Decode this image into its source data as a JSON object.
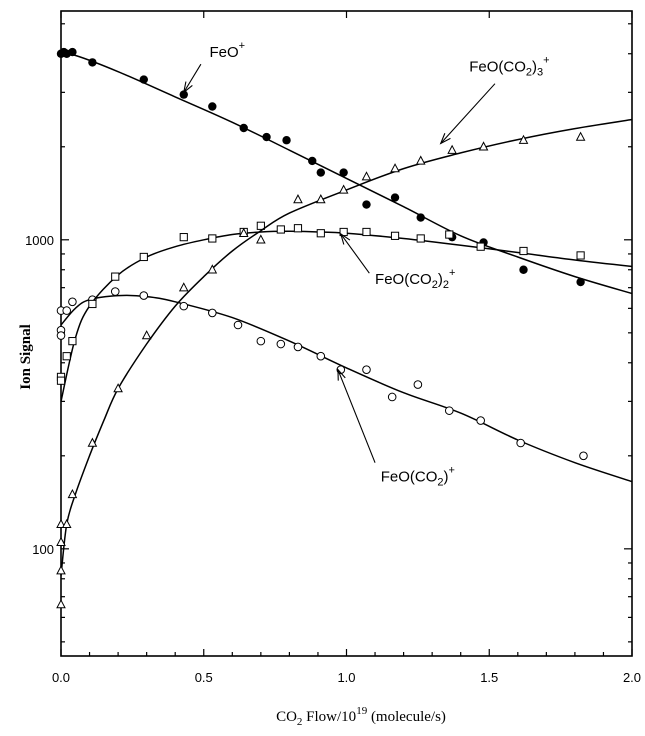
{
  "chart_data": {
    "type": "scatter",
    "title": "",
    "xlabel": {
      "prefix": "CO",
      "sub": "2",
      "mid": " Flow/10",
      "sup": "19",
      "suffix": " (molecule/s)"
    },
    "ylabel": "Ion Signal",
    "xlim": [
      0,
      2.0
    ],
    "ylim": [
      45,
      5500
    ],
    "yscale": "log",
    "xticks": [
      "0.0",
      "0.5",
      "1.0",
      "1.5",
      "2.0"
    ],
    "yticks": [
      {
        "value": 100,
        "label": "100"
      },
      {
        "value": 1000,
        "label": "1000"
      }
    ],
    "series": [
      {
        "name": "FeO+",
        "marker": "filled-circle",
        "x": [
          0.0,
          0.01,
          0.02,
          0.04,
          0.11,
          0.29,
          0.43,
          0.53,
          0.64,
          0.72,
          0.79,
          0.88,
          0.91,
          0.99,
          1.07,
          1.17,
          1.26,
          1.37,
          1.48,
          1.62,
          1.82
        ],
        "y": [
          4000,
          4050,
          4000,
          4050,
          3750,
          3300,
          2950,
          2700,
          2300,
          2150,
          2100,
          1800,
          1650,
          1650,
          1300,
          1370,
          1180,
          1020,
          980,
          800,
          730
        ],
        "fit": {
          "x": [
            0.0,
            0.05,
            0.2,
            0.4,
            0.6,
            0.8,
            1.0,
            1.2,
            1.4,
            1.6,
            1.8,
            2.0
          ],
          "y": [
            4000,
            3950,
            3500,
            2900,
            2400,
            1950,
            1580,
            1280,
            1030,
            880,
            760,
            670
          ]
        }
      },
      {
        "name": "FeO(CO2)+",
        "marker": "open-circle",
        "x": [
          0.0,
          0.0,
          0.0,
          0.02,
          0.04,
          0.11,
          0.19,
          0.29,
          0.43,
          0.53,
          0.62,
          0.7,
          0.77,
          0.83,
          0.91,
          0.98,
          1.07,
          1.16,
          1.25,
          1.36,
          1.47,
          1.61,
          1.83
        ],
        "y": [
          590,
          510,
          490,
          590,
          630,
          640,
          680,
          660,
          610,
          580,
          530,
          470,
          460,
          450,
          420,
          380,
          380,
          310,
          340,
          280,
          260,
          220,
          200
        ],
        "fit": {
          "x": [
            0.0,
            0.05,
            0.1,
            0.2,
            0.3,
            0.4,
            0.6,
            0.8,
            1.0,
            1.2,
            1.4,
            1.6,
            1.8,
            2.0
          ],
          "y": [
            530,
            600,
            640,
            660,
            655,
            630,
            560,
            470,
            385,
            320,
            275,
            225,
            190,
            165
          ]
        }
      },
      {
        "name": "FeO(CO2)2+",
        "marker": "open-square",
        "x": [
          0.0,
          0.0,
          0.02,
          0.04,
          0.11,
          0.19,
          0.29,
          0.43,
          0.53,
          0.64,
          0.7,
          0.77,
          0.83,
          0.91,
          0.99,
          1.07,
          1.17,
          1.26,
          1.36,
          1.47,
          1.62,
          1.82
        ],
        "y": [
          360,
          350,
          420,
          470,
          620,
          760,
          880,
          1020,
          1010,
          1060,
          1110,
          1080,
          1090,
          1050,
          1060,
          1060,
          1030,
          1010,
          1040,
          950,
          920,
          890
        ],
        "fit": {
          "x": [
            0.0,
            0.05,
            0.1,
            0.2,
            0.3,
            0.4,
            0.5,
            0.6,
            0.7,
            0.8,
            0.9,
            1.0,
            1.2,
            1.4,
            1.6,
            1.8,
            2.0
          ],
          "y": [
            300,
            480,
            610,
            770,
            880,
            950,
            1000,
            1040,
            1060,
            1065,
            1060,
            1050,
            1010,
            960,
            910,
            860,
            820
          ]
        }
      },
      {
        "name": "FeO(CO2)3+",
        "marker": "open-triangle",
        "x": [
          0.0,
          0.0,
          0.0,
          0.0,
          0.02,
          0.04,
          0.11,
          0.2,
          0.3,
          0.43,
          0.53,
          0.64,
          0.7,
          0.83,
          0.91,
          0.99,
          1.07,
          1.17,
          1.26,
          1.37,
          1.48,
          1.62,
          1.82
        ],
        "y": [
          66,
          85,
          105,
          120,
          120,
          150,
          220,
          330,
          490,
          700,
          800,
          1050,
          1000,
          1350,
          1350,
          1450,
          1600,
          1700,
          1800,
          1950,
          2000,
          2100,
          2150
        ],
        "fit": {
          "x": [
            0.0,
            0.02,
            0.05,
            0.1,
            0.15,
            0.2,
            0.3,
            0.4,
            0.5,
            0.6,
            0.7,
            0.8,
            1.0,
            1.2,
            1.4,
            1.6,
            1.8,
            2.0
          ],
          "y": [
            82,
            120,
            150,
            200,
            260,
            330,
            460,
            610,
            760,
            920,
            1070,
            1220,
            1450,
            1700,
            1910,
            2110,
            2290,
            2450
          ]
        }
      }
    ],
    "annotations": [
      {
        "text": "FeO",
        "sup": "+",
        "sub": "",
        "sup2": "",
        "tx": 0.52,
        "ty": 3900,
        "ax": 0.43,
        "ay": 3000,
        "from": [
          0.49,
          3700
        ]
      },
      {
        "text": "FeO(CO",
        "sub": "2",
        "close": ")",
        "sub2": "3",
        "sup": "+",
        "tx": 1.43,
        "ty": 3500,
        "ax": 1.33,
        "ay": 2050,
        "from": [
          1.52,
          3200
        ]
      },
      {
        "text": "FeO(CO",
        "sub": "2",
        "close": ")",
        "sub2": "2",
        "sup": "+",
        "tx": 1.1,
        "ty": 720,
        "ax": 0.98,
        "ay": 1045,
        "from": [
          1.08,
          780
        ]
      },
      {
        "text": "FeO(CO",
        "sub": "2",
        "close": ")",
        "sub2": "",
        "sup": "+",
        "tx": 1.12,
        "ty": 165,
        "ax": 0.97,
        "ay": 380,
        "from": [
          1.1,
          190
        ]
      }
    ]
  }
}
